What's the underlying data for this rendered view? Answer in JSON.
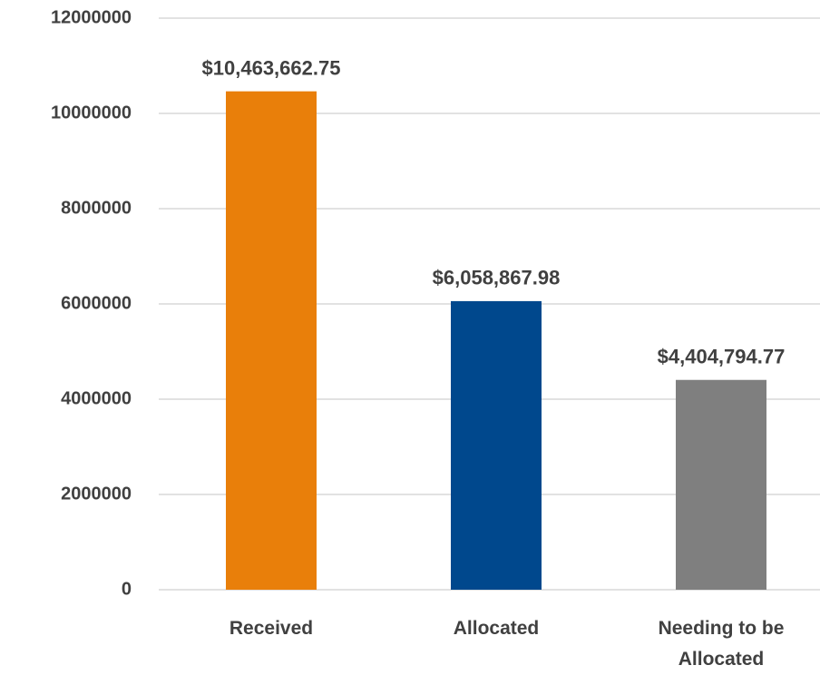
{
  "chart_data": {
    "type": "bar",
    "categories": [
      "Received",
      "Allocated",
      "Needing to be Allocated"
    ],
    "values": [
      10463662.75,
      6058867.98,
      4404794.77
    ],
    "value_labels": [
      "$10,463,662.75",
      "$6,058,867.98",
      "$4,404,794.77"
    ],
    "colors": [
      "#e97f0a",
      "#00488d",
      "#7f7f7f"
    ],
    "ylim": [
      0,
      12000000
    ],
    "yticks": [
      0,
      2000000,
      4000000,
      6000000,
      8000000,
      10000000,
      12000000
    ],
    "grid": true
  }
}
